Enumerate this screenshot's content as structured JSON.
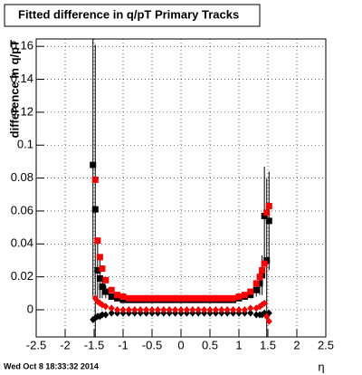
{
  "chart_data": {
    "type": "scatter",
    "title": "Fitted difference in q/pT  Primary Tracks",
    "y_label": "difference in q/pT",
    "x_label": "η",
    "footer": "Wed Oct  8 18:33:32 2014",
    "x": [
      -1.52,
      -1.48,
      -1.44,
      -1.4,
      -1.36,
      -1.3,
      -1.2,
      -1.1,
      -1,
      -0.9,
      -0.8,
      -0.7,
      -0.6,
      -0.5,
      -0.4,
      -0.3,
      -0.2,
      -0.1,
      0,
      0.1,
      0.2,
      0.3,
      0.4,
      0.5,
      0.6,
      0.7,
      0.8,
      0.9,
      1,
      1.1,
      1.2,
      1.3,
      1.36,
      1.4,
      1.44,
      1.48,
      1.52
    ],
    "series": [
      {
        "color": "#000000",
        "marker": "square",
        "values": [
          0.088,
          0.061,
          0.024,
          0.019,
          0.014,
          0.011,
          0.008,
          0.007,
          0.006,
          0.006,
          0.006,
          0.006,
          0.006,
          0.006,
          0.006,
          0.006,
          0.006,
          0.006,
          0.006,
          0.006,
          0.006,
          0.006,
          0.006,
          0.006,
          0.006,
          0.006,
          0.006,
          0.006,
          0.007,
          0.008,
          0.009,
          0.012,
          0.016,
          0.021,
          0.057,
          0.03,
          0.054
        ],
        "errors": [
          0.08,
          0.1,
          0.02,
          0.012,
          0.007,
          0.004,
          0.002,
          0.001,
          0.001,
          0.001,
          0.001,
          0.001,
          0.001,
          0.001,
          0.001,
          0.001,
          0.001,
          0.001,
          0.001,
          0.001,
          0.001,
          0.001,
          0.001,
          0.001,
          0.001,
          0.001,
          0.001,
          0.001,
          0.001,
          0.001,
          0.002,
          0.004,
          0.007,
          0.012,
          0.03,
          0.05,
          0.03
        ]
      },
      {
        "color": "#ff0000",
        "marker": "square",
        "values": [
          null,
          0.079,
          0.042,
          0.032,
          0.025,
          0.018,
          0.012,
          0.009,
          0.008,
          0.007,
          0.007,
          0.007,
          0.007,
          0.007,
          0.007,
          0.007,
          0.007,
          0.007,
          0.007,
          0.007,
          0.007,
          0.007,
          0.007,
          0.007,
          0.007,
          0.007,
          0.007,
          0.007,
          0.008,
          0.009,
          0.011,
          0.016,
          0.02,
          0.024,
          0.028,
          0.059,
          0.063
        ]
      },
      {
        "color": "#000000",
        "marker": "diamond",
        "values": [
          -0.006,
          -0.005,
          -0.004,
          -0.004,
          -0.003,
          -0.003,
          -0.002,
          -0.002,
          -0.002,
          -0.002,
          -0.002,
          -0.002,
          -0.002,
          -0.002,
          -0.002,
          -0.002,
          -0.002,
          -0.002,
          -0.002,
          -0.002,
          -0.002,
          -0.002,
          -0.002,
          -0.002,
          -0.002,
          -0.002,
          -0.002,
          -0.002,
          -0.002,
          -0.002,
          -0.002,
          -0.003,
          -0.003,
          -0.003,
          -0.002,
          -0.004,
          -0.002
        ]
      },
      {
        "color": "#ff0000",
        "marker": "diamond",
        "values": [
          null,
          0.007,
          0.005,
          0.004,
          0.003,
          0.002,
          0.001,
          0,
          0,
          0,
          0,
          0,
          0,
          0,
          0,
          0,
          0,
          0,
          0,
          0,
          0,
          0,
          0,
          0,
          0,
          0,
          0,
          0,
          0,
          0,
          0.001,
          0.001,
          0.002,
          0.003,
          0.004,
          -0.004,
          -0.007
        ]
      }
    ],
    "xlim": [
      -2.5,
      2.5
    ],
    "xticks": [
      -2.5,
      -2,
      -1.5,
      -1,
      -0.5,
      0,
      0.5,
      1,
      1.5,
      2,
      2.5
    ],
    "ylim": [
      -0.0165,
      0.1645
    ],
    "yticks": [
      0,
      0.02,
      0.04,
      0.06,
      0.08,
      0.1,
      0.12,
      0.14,
      0.16
    ],
    "grid": true
  }
}
